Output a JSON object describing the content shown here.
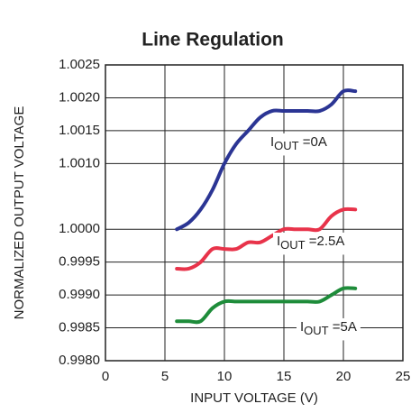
{
  "chart_data": {
    "type": "line",
    "title": "Line Regulation",
    "xlabel": "INPUT VOLTAGE (V)",
    "ylabel": "NORMALIZED OUTPUT VOLTAGE",
    "xlim": [
      0,
      25
    ],
    "xticks": [
      0,
      5,
      10,
      15,
      20,
      25
    ],
    "ylim": [
      0.998,
      1.0025
    ],
    "yticks": [
      {
        "value": 1.0025,
        "label": "1.0025"
      },
      {
        "value": 1.002,
        "label": "1.0020"
      },
      {
        "value": 1.0015,
        "label": "1.0015"
      },
      {
        "value": 1.001,
        "label": "1.0010"
      },
      {
        "value": 1.0,
        "label": "1.0000"
      },
      {
        "value": 0.9995,
        "label": "0.9995"
      },
      {
        "value": 0.999,
        "label": "0.9990"
      },
      {
        "value": 0.9985,
        "label": "0.9985"
      },
      {
        "value": 0.998,
        "label": "0.9980"
      }
    ],
    "grid": true,
    "series": [
      {
        "color": "#2b3594",
        "x": [
          6,
          7,
          8,
          9,
          10,
          11,
          12,
          13,
          14,
          15,
          16,
          17,
          18,
          19,
          20,
          21
        ],
        "values": [
          1.0,
          1.0001,
          1.0003,
          1.0006,
          1.001,
          1.0013,
          1.0015,
          1.0017,
          1.0018,
          1.0018,
          1.0018,
          1.0018,
          1.0018,
          1.0019,
          1.0021,
          1.0021
        ]
      },
      {
        "color": "#e8334a",
        "x": [
          6,
          7,
          8,
          9,
          10,
          11,
          12,
          13,
          14,
          15,
          16,
          17,
          18,
          19,
          20,
          21
        ],
        "values": [
          0.9994,
          0.9994,
          0.9995,
          0.9997,
          0.9997,
          0.9997,
          0.9998,
          0.9998,
          0.9999,
          1.0,
          1.0,
          1.0,
          1.0,
          1.0002,
          1.0003,
          1.0003
        ]
      },
      {
        "color": "#1e8c3a",
        "x": [
          6,
          7,
          8,
          9,
          10,
          11,
          12,
          13,
          14,
          15,
          16,
          17,
          18,
          19,
          20,
          21
        ],
        "values": [
          0.9986,
          0.9986,
          0.9986,
          0.9988,
          0.9989,
          0.9989,
          0.9989,
          0.9989,
          0.9989,
          0.9989,
          0.9989,
          0.9989,
          0.9989,
          0.999,
          0.9991,
          0.9991
        ]
      }
    ],
    "annotations": [
      {
        "text": "I",
        "sub": "OUT",
        "rest": " =0A"
      },
      {
        "text": "I",
        "sub": "OUT",
        "rest": " =2.5A"
      },
      {
        "text": "I",
        "sub": "OUT",
        "rest": " =5A"
      }
    ]
  }
}
